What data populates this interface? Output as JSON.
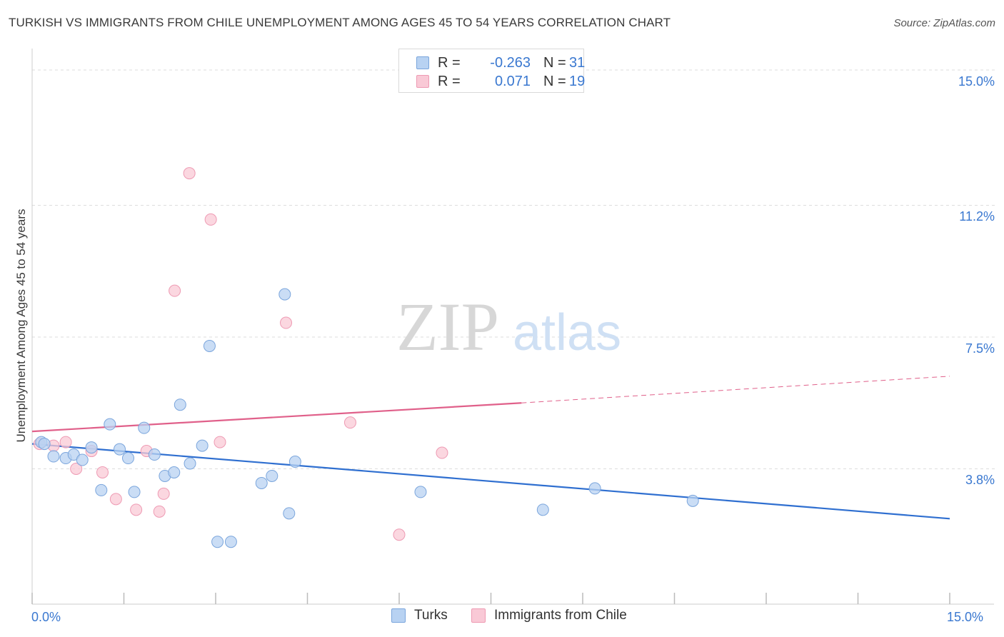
{
  "title": "TURKISH VS IMMIGRANTS FROM CHILE UNEMPLOYMENT AMONG AGES 45 TO 54 YEARS CORRELATION CHART",
  "source": "Source: ZipAtlas.com",
  "watermark": {
    "zip": "ZIP",
    "atlas": "atlas"
  },
  "legend_top": {
    "rows": [
      {
        "r_label": "R =",
        "r_value": "-0.263",
        "n_label": "N =",
        "n_value": "31",
        "color": "#a9c8f0"
      },
      {
        "r_label": "R =",
        "r_value": "0.071",
        "n_label": "N =",
        "n_value": "19",
        "color": "#f6b6c8"
      }
    ]
  },
  "legend_bottom": {
    "series1": "Turks",
    "series2": "Immigrants from Chile"
  },
  "colors": {
    "turks_fill": "#b8d2f2",
    "turks_stroke": "#7aa5dc",
    "turks_line": "#2f6fd0",
    "chile_fill": "#f9c9d6",
    "chile_stroke": "#ee9ab3",
    "chile_line": "#e0608a",
    "axis_label": "#3a78d0",
    "grid": "#dedede"
  },
  "chart_data": {
    "type": "scatter",
    "title": "TURKISH VS IMMIGRANTS FROM CHILE UNEMPLOYMENT AMONG AGES 45 TO 54 YEARS CORRELATION CHART",
    "xlabel": "",
    "ylabel": "Unemployment Among Ages 45 to 54 years",
    "xlim": [
      0,
      15
    ],
    "ylim": [
      0,
      15.4
    ],
    "x_tick_labels": {
      "min": "0.0%",
      "max": "15.0%"
    },
    "y_ticks": [
      {
        "value": 3.8,
        "label": "3.8%"
      },
      {
        "value": 7.5,
        "label": "7.5%"
      },
      {
        "value": 11.2,
        "label": "11.2%"
      },
      {
        "value": 15.0,
        "label": "15.0%"
      }
    ],
    "grid": true,
    "legend_position": "top-center",
    "series": [
      {
        "name": "Turks",
        "R": -0.263,
        "N": 31,
        "points": [
          [
            0.15,
            4.55
          ],
          [
            0.2,
            4.5
          ],
          [
            0.35,
            4.15
          ],
          [
            0.55,
            4.1
          ],
          [
            0.68,
            4.2
          ],
          [
            0.82,
            4.05
          ],
          [
            0.97,
            4.4
          ],
          [
            1.13,
            3.2
          ],
          [
            1.27,
            5.05
          ],
          [
            1.43,
            4.35
          ],
          [
            1.57,
            4.1
          ],
          [
            1.67,
            3.15
          ],
          [
            1.83,
            4.95
          ],
          [
            2.0,
            4.2
          ],
          [
            2.17,
            3.6
          ],
          [
            2.32,
            3.7
          ],
          [
            2.42,
            5.6
          ],
          [
            2.58,
            3.95
          ],
          [
            2.78,
            4.45
          ],
          [
            2.9,
            7.25
          ],
          [
            3.03,
            1.75
          ],
          [
            3.25,
            1.75
          ],
          [
            3.75,
            3.4
          ],
          [
            3.92,
            3.6
          ],
          [
            4.13,
            8.7
          ],
          [
            4.2,
            2.55
          ],
          [
            4.3,
            4.0
          ],
          [
            6.35,
            3.15
          ],
          [
            8.35,
            2.65
          ],
          [
            9.2,
            3.25
          ],
          [
            10.8,
            2.9
          ]
        ],
        "trend": {
          "x0": 0,
          "y0": 4.5,
          "x1": 15,
          "y1": 2.4
        }
      },
      {
        "name": "Immigrants from Chile",
        "R": 0.071,
        "N": 19,
        "points": [
          [
            0.12,
            4.5
          ],
          [
            0.35,
            4.45
          ],
          [
            0.55,
            4.55
          ],
          [
            0.72,
            3.8
          ],
          [
            0.97,
            4.3
          ],
          [
            1.15,
            3.7
          ],
          [
            1.37,
            2.95
          ],
          [
            1.7,
            2.65
          ],
          [
            1.87,
            4.3
          ],
          [
            2.08,
            2.6
          ],
          [
            2.15,
            3.1
          ],
          [
            2.33,
            8.8
          ],
          [
            2.57,
            12.1
          ],
          [
            2.92,
            10.8
          ],
          [
            3.07,
            4.55
          ],
          [
            4.15,
            7.9
          ],
          [
            5.2,
            5.1
          ],
          [
            6.0,
            1.95
          ],
          [
            6.7,
            4.25
          ]
        ],
        "trend": {
          "x0": 0,
          "y0": 4.85,
          "x1": 8.0,
          "y1": 5.65,
          "dash_x1": 15,
          "dash_y1": 6.4
        }
      }
    ]
  }
}
